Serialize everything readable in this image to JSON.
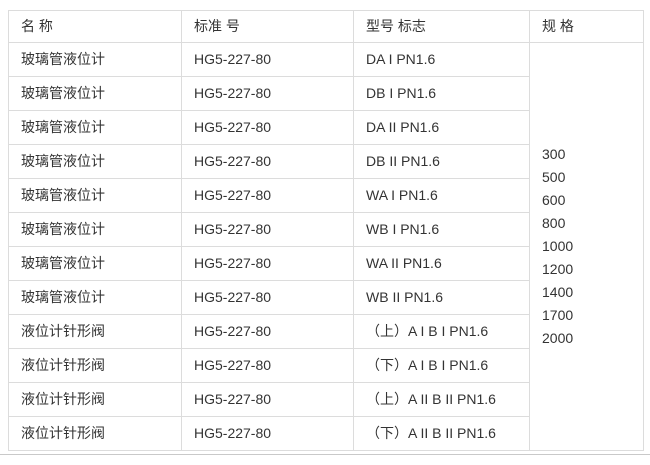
{
  "table": {
    "columns": [
      {
        "label": "名 称"
      },
      {
        "label": "标准 号"
      },
      {
        "label": "型号 标志"
      },
      {
        "label": "规 格"
      }
    ],
    "rows": [
      {
        "name": "玻璃管液位计",
        "standard": "HG5-227-80",
        "model": "DA I PN1.6"
      },
      {
        "name": "玻璃管液位计",
        "standard": "HG5-227-80",
        "model": "DB I PN1.6"
      },
      {
        "name": "玻璃管液位计",
        "standard": "HG5-227-80",
        "model": "DA II PN1.6"
      },
      {
        "name": "玻璃管液位计",
        "standard": "HG5-227-80",
        "model": "DB II PN1.6"
      },
      {
        "name": "玻璃管液位计",
        "standard": "HG5-227-80",
        "model": "WA I PN1.6"
      },
      {
        "name": "玻璃管液位计",
        "standard": "HG5-227-80",
        "model": "WB I PN1.6"
      },
      {
        "name": "玻璃管液位计",
        "standard": "HG5-227-80",
        "model": "WA II PN1.6"
      },
      {
        "name": "玻璃管液位计",
        "standard": "HG5-227-80",
        "model": "WB II PN1.6"
      },
      {
        "name": "液位计针形阀",
        "standard": "HG5-227-80",
        "model": "（上）A I B I PN1.6"
      },
      {
        "name": "液位计针形阀",
        "standard": "HG5-227-80",
        "model": "（下）A I B I PN1.6"
      },
      {
        "name": "液位计针形阀",
        "standard": "HG5-227-80",
        "model": "（上）A II B II PN1.6"
      },
      {
        "name": "液位计针形阀",
        "standard": "HG5-227-80",
        "model": "（下）A II B II PN1.6"
      }
    ],
    "specs": [
      "300",
      "500",
      "600",
      "800",
      "1000",
      "1200",
      "1400",
      "1700",
      "2000"
    ]
  },
  "colors": {
    "border": "#dcdcdc",
    "text": "#333333",
    "divider": "#c9c9c9",
    "background": "#ffffff"
  }
}
